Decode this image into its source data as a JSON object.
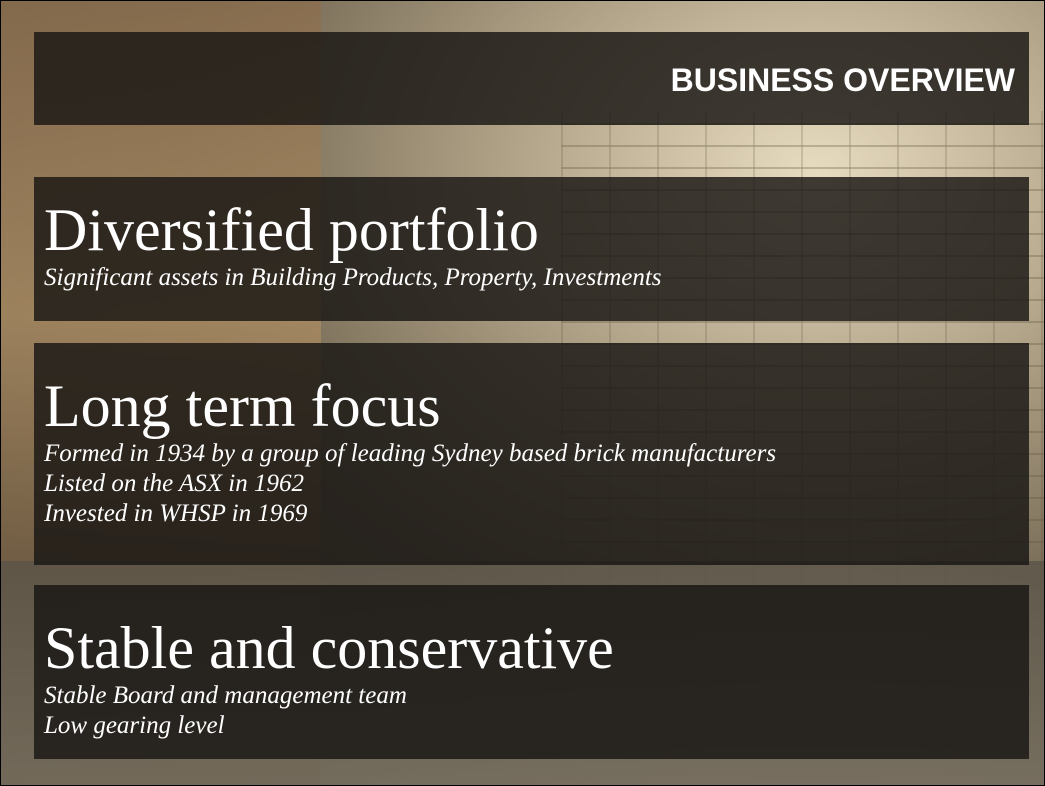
{
  "header": {
    "title": "BUSINESS OVERVIEW"
  },
  "sections": [
    {
      "heading": "Diversified portfolio",
      "lines": [
        "Significant assets in Building Products, Property, Investments"
      ]
    },
    {
      "heading": "Long term focus",
      "lines": [
        "Formed in 1934 by a group of leading Sydney based brick manufacturers",
        "Listed on the ASX in 1962",
        "Invested in WHSP in 1969"
      ]
    },
    {
      "heading": "Stable and conservative",
      "lines": [
        "Stable Board and management team",
        "Low gearing level"
      ]
    }
  ]
}
